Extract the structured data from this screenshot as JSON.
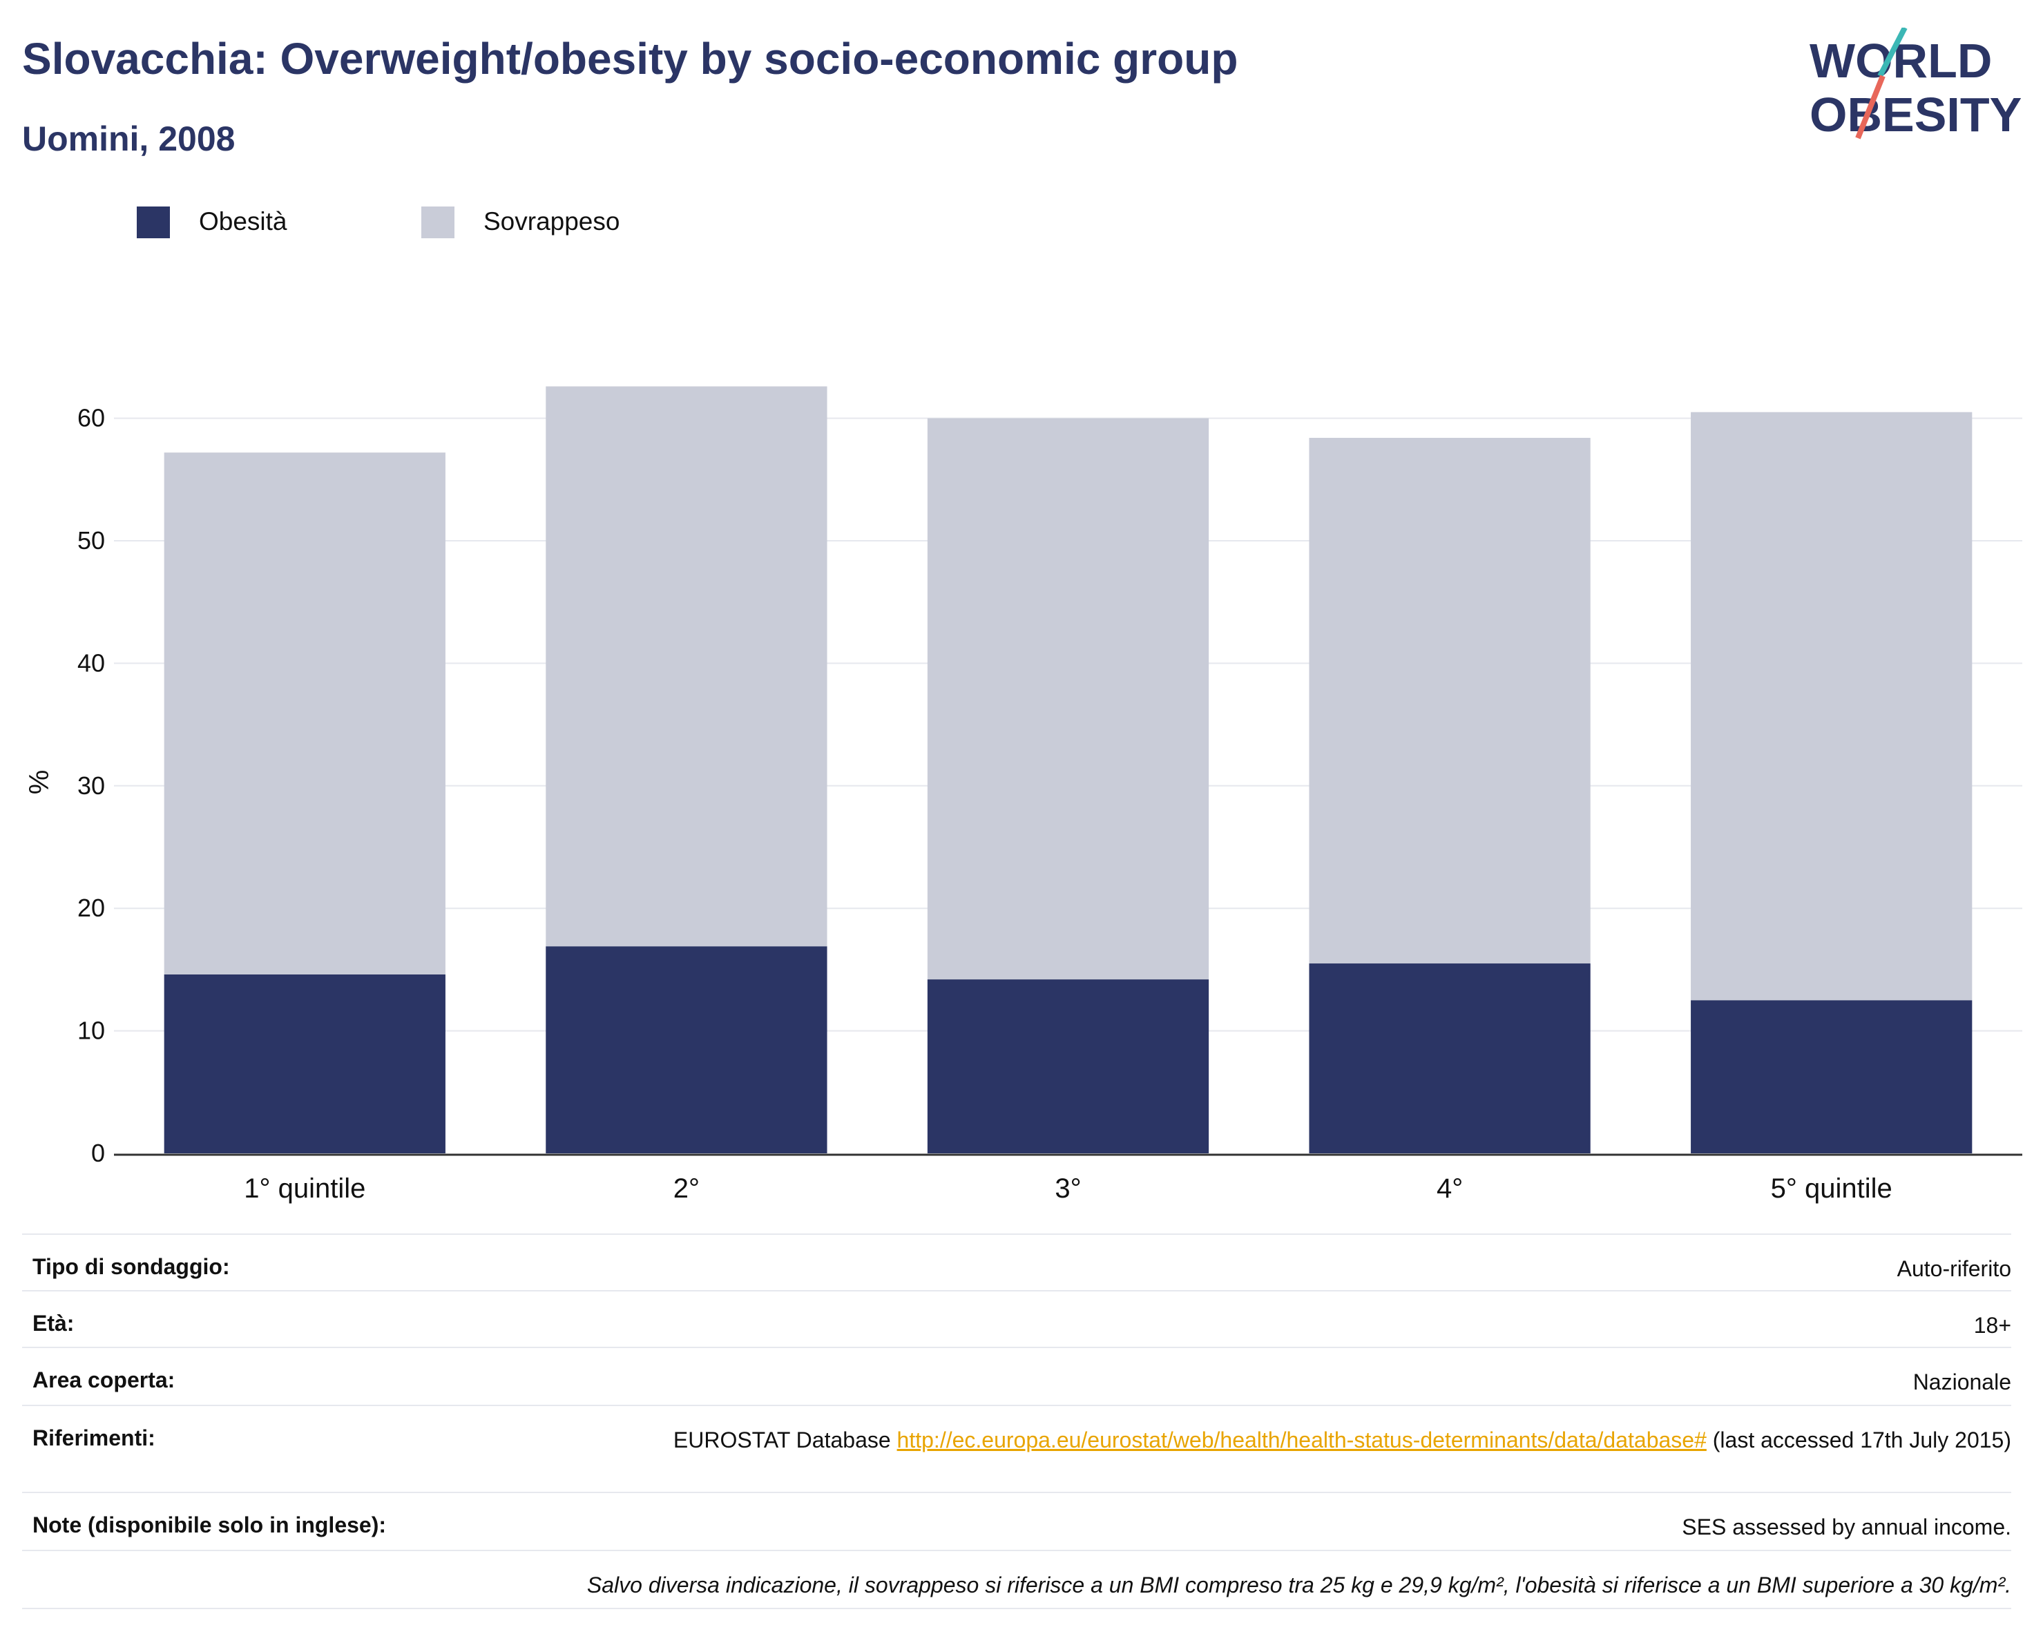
{
  "header": {
    "title": "Slovacchia: Overweight/obesity by socio-economic group",
    "subtitle": "Uomini, 2008"
  },
  "logo": {
    "line1": "WORLD",
    "line2": "OBESITY",
    "text_color": "#2b3565",
    "slash_colors": [
      "#3cb7b5",
      "#e8675a"
    ]
  },
  "legend": [
    {
      "label": "Obesità",
      "color": "#2b3565"
    },
    {
      "label": "Sovrappeso",
      "color": "#c9ccd8"
    }
  ],
  "chart_data": {
    "type": "bar",
    "stacked": true,
    "categories": [
      "1° quintile",
      "2°",
      "3°",
      "4°",
      "5° quintile"
    ],
    "series": [
      {
        "name": "Obesità",
        "color": "#2b3565",
        "values": [
          14.6,
          16.9,
          14.2,
          15.5,
          12.5
        ]
      },
      {
        "name": "Sovrappeso",
        "color": "#c9ccd8",
        "values": [
          42.6,
          45.7,
          45.8,
          42.9,
          48.0
        ]
      }
    ],
    "ylabel": "%",
    "ylim": [
      0,
      65
    ],
    "yticks": [
      0,
      10,
      20,
      30,
      40,
      50,
      60
    ],
    "grid": true,
    "legend_position": "top-left"
  },
  "info": {
    "rows": [
      {
        "key": "Tipo di sondaggio:",
        "value": "Auto-riferito"
      },
      {
        "key": "Età:",
        "value": "18+"
      },
      {
        "key": "Area coperta:",
        "value": "Nazionale"
      },
      {
        "key": "Riferimenti:",
        "value_prefix": "EUROSTAT Database ",
        "link": "http://ec.europa.eu/eurostat/web/health/health-status-determinants/data/database#",
        "value_suffix": " (last accessed 17th July 2015)"
      },
      {
        "key": "Note (disponibile solo in inglese):",
        "value": "SES assessed by annual income."
      }
    ],
    "footnote": "Salvo diversa indicazione, il sovrappeso si riferisce a un BMI compreso tra 25 kg e 29,9 kg/m², l'obesità si riferisce a un BMI superiore a 30 kg/m²."
  }
}
